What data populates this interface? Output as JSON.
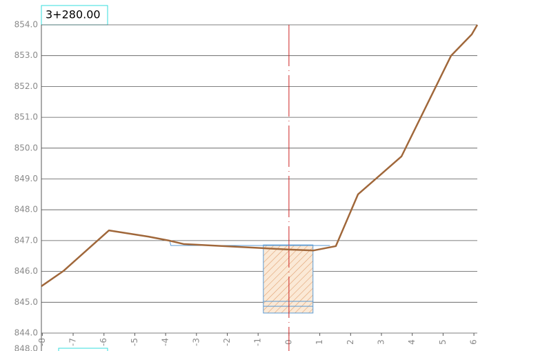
{
  "chart_data": {
    "type": "line",
    "title": "3+280.00",
    "next_section_label": "848.0",
    "xlim": [
      -8.03,
      6.11
    ],
    "ylim": [
      844,
      854
    ],
    "xticks": [
      -8,
      -7,
      -6,
      -5,
      -4,
      -3,
      -2,
      -1,
      0,
      1,
      2,
      3,
      4,
      5,
      6
    ],
    "yticks": [
      {
        "value": 844,
        "label": "844.0"
      },
      {
        "value": 845,
        "label": "845.0"
      },
      {
        "value": 846,
        "label": "846.0"
      },
      {
        "value": 847,
        "label": "847.0"
      },
      {
        "value": 848,
        "label": "848.0"
      },
      {
        "value": 849,
        "label": "849.0"
      },
      {
        "value": 850,
        "label": "850.0"
      },
      {
        "value": 851,
        "label": "851.0"
      },
      {
        "value": 852,
        "label": "852.0"
      },
      {
        "value": 853,
        "label": "853.0"
      },
      {
        "value": 854,
        "label": "854.0"
      }
    ],
    "grid": true,
    "series": [
      {
        "color": "#a0673a",
        "x": [
          -8.03,
          -7.32,
          -5.84,
          -4.56,
          -3.89,
          -3.42,
          0,
          0.8,
          1.52,
          2.24,
          3.65,
          5.26,
          5.93,
          6.11
        ],
        "values": [
          845.52,
          846.01,
          847.33,
          847.13,
          847.0,
          846.89,
          846.71,
          846.68,
          846.82,
          848.5,
          849.73,
          853.0,
          853.69,
          854.0
        ]
      },
      {
        "color": "#5b9bd5",
        "x": [
          -3.87,
          -3.83,
          1.33
        ],
        "values": [
          847.0,
          846.84,
          846.84
        ]
      }
    ],
    "structure": {
      "color": "#5b9bd5",
      "hatch": "#e0a070",
      "x": [
        -0.83,
        0.78
      ],
      "y": [
        844.65,
        846.86
      ],
      "inner_lines": [
        845.03,
        844.87
      ]
    },
    "centerline_color": "#cc2222"
  }
}
